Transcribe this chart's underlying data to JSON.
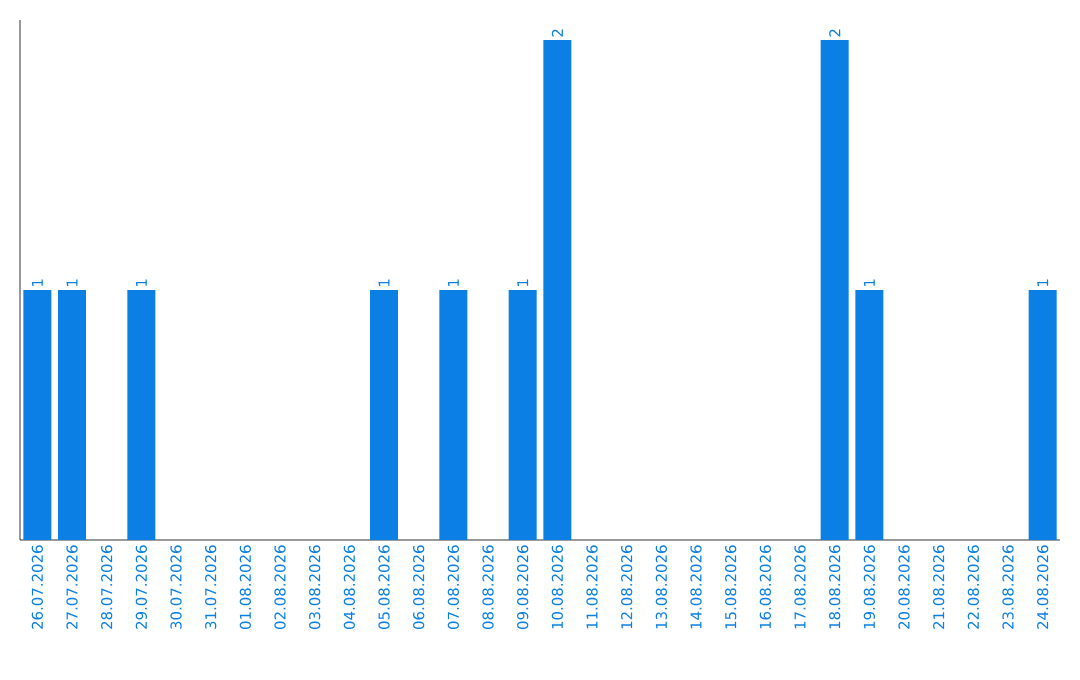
{
  "chart_data": {
    "type": "bar",
    "color": "#0b7fe3",
    "categories": [
      "26.07.2026",
      "27.07.2026",
      "28.07.2026",
      "29.07.2026",
      "30.07.2026",
      "31.07.2026",
      "01.08.2026",
      "02.08.2026",
      "03.08.2026",
      "04.08.2026",
      "05.08.2026",
      "06.08.2026",
      "07.08.2026",
      "08.08.2026",
      "09.08.2026",
      "10.08.2026",
      "11.08.2026",
      "12.08.2026",
      "13.08.2026",
      "14.08.2026",
      "15.08.2026",
      "16.08.2026",
      "17.08.2026",
      "18.08.2026",
      "19.08.2026",
      "20.08.2026",
      "21.08.2026",
      "22.08.2026",
      "23.08.2026",
      "24.08.2026"
    ],
    "values": [
      1,
      1,
      0,
      1,
      0,
      0,
      0,
      0,
      0,
      0,
      1,
      0,
      1,
      0,
      1,
      2,
      0,
      0,
      0,
      0,
      0,
      0,
      0,
      2,
      1,
      0,
      0,
      0,
      0,
      1
    ],
    "value_labels": [
      "1",
      "1",
      null,
      "1",
      null,
      null,
      null,
      null,
      null,
      null,
      "1",
      null,
      "1",
      null,
      "1",
      "2",
      null,
      null,
      null,
      null,
      null,
      null,
      null,
      "2",
      "1",
      null,
      null,
      null,
      null,
      "1"
    ],
    "data_labels": false
  }
}
